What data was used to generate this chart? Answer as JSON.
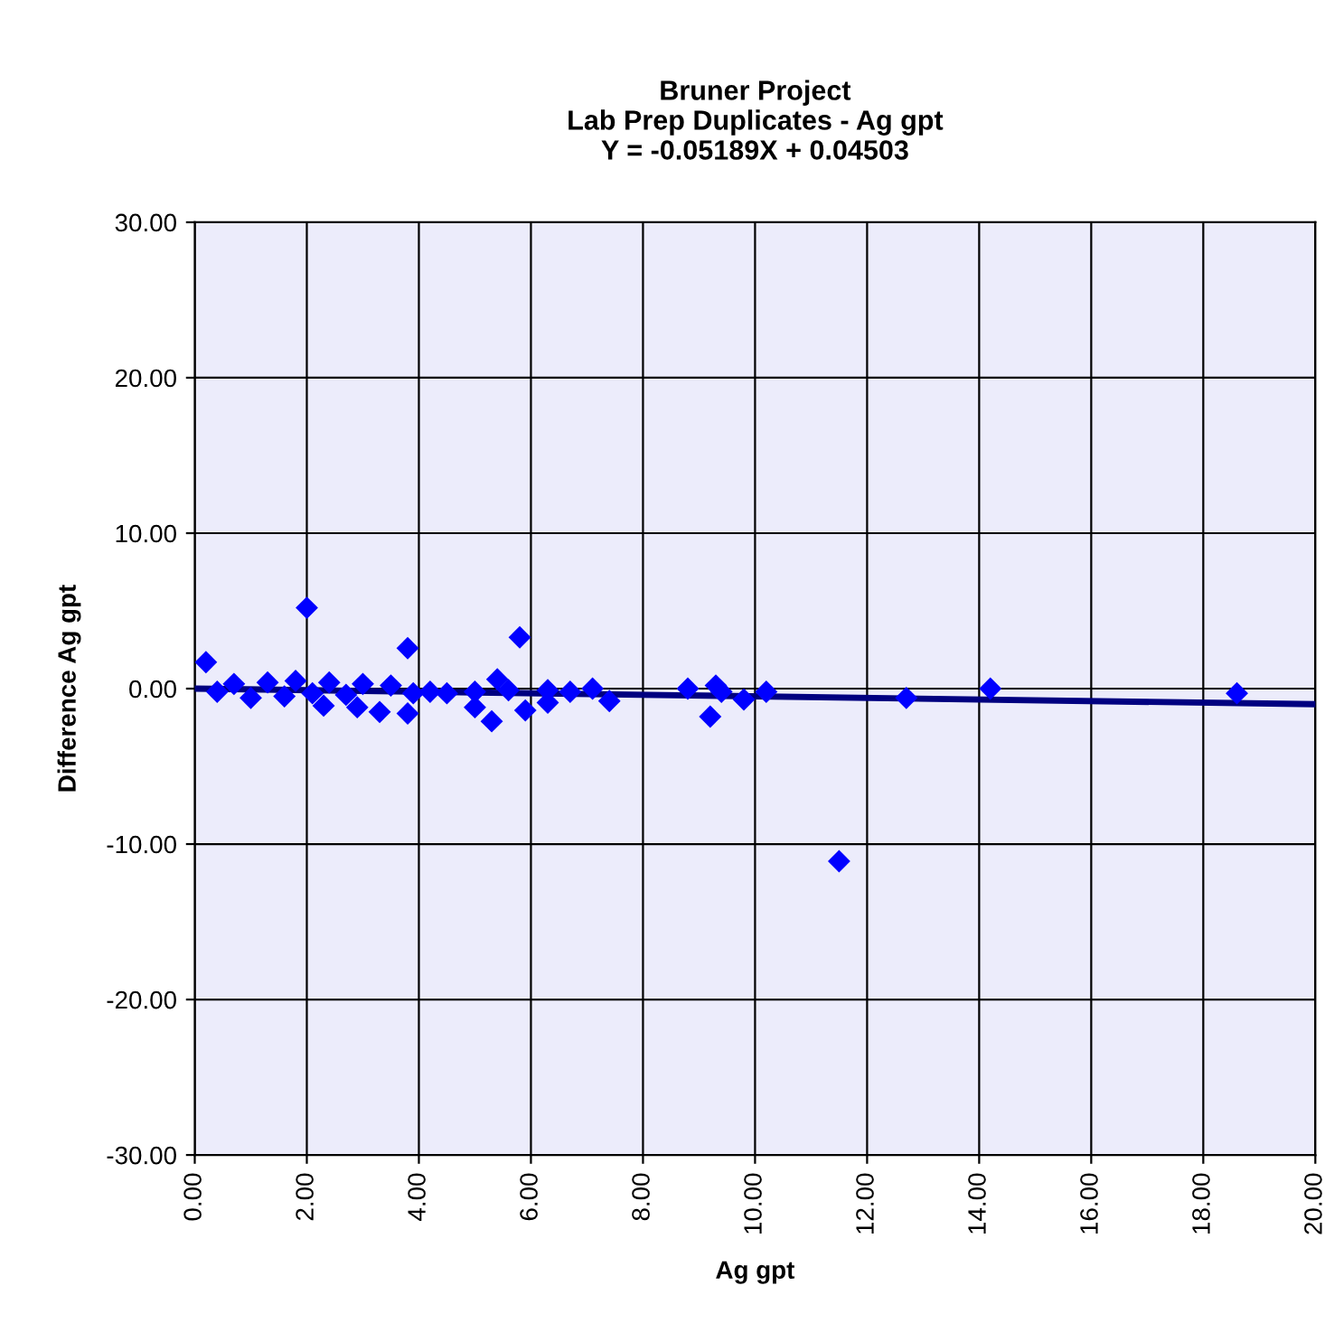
{
  "chart_data": {
    "type": "scatter",
    "title": "Bruner Project\nLab Prep Duplicates - Ag gpt\nY = -0.05189X + 0.04503",
    "xlabel": "Ag gpt",
    "ylabel": "Difference Ag gpt",
    "xlim": [
      0,
      20
    ],
    "ylim": [
      -30,
      30
    ],
    "xticks": [
      {
        "value": 0,
        "label": "0.00"
      },
      {
        "value": 2,
        "label": "2.00"
      },
      {
        "value": 4,
        "label": "4.00"
      },
      {
        "value": 6,
        "label": "6.00"
      },
      {
        "value": 8,
        "label": "8.00"
      },
      {
        "value": 10,
        "label": "10.00"
      },
      {
        "value": 12,
        "label": "12.00"
      },
      {
        "value": 14,
        "label": "14.00"
      },
      {
        "value": 16,
        "label": "16.00"
      },
      {
        "value": 18,
        "label": "18.00"
      },
      {
        "value": 20,
        "label": "20.00"
      }
    ],
    "yticks": [
      {
        "value": -30,
        "label": "-30.00"
      },
      {
        "value": -20,
        "label": "-20.00"
      },
      {
        "value": -10,
        "label": "-10.00"
      },
      {
        "value": 0,
        "label": "0.00"
      },
      {
        "value": 10,
        "label": "10.00"
      },
      {
        "value": 20,
        "label": "20.00"
      },
      {
        "value": 30,
        "label": "30.00"
      }
    ],
    "grid": true,
    "series": [
      {
        "color": "#0000ff",
        "marker": "diamond",
        "x": [
          0.2,
          0.4,
          0.7,
          1.0,
          1.3,
          1.6,
          1.8,
          2.0,
          2.1,
          2.3,
          2.4,
          2.7,
          2.9,
          3.0,
          3.3,
          3.5,
          3.8,
          3.8,
          3.9,
          4.2,
          4.5,
          5.0,
          5.0,
          5.3,
          5.4,
          5.6,
          5.8,
          5.9,
          6.3,
          6.3,
          6.7,
          7.1,
          7.4,
          8.8,
          9.2,
          9.3,
          9.4,
          9.8,
          10.2,
          11.5,
          12.7,
          14.2,
          18.6
        ],
        "values": [
          1.7,
          -0.2,
          0.3,
          -0.6,
          0.4,
          -0.5,
          0.5,
          5.2,
          -0.3,
          -1.1,
          0.4,
          -0.4,
          -1.2,
          0.3,
          -1.5,
          0.2,
          2.6,
          -1.6,
          -0.3,
          -0.2,
          -0.3,
          -0.2,
          -1.2,
          -2.1,
          0.6,
          -0.1,
          3.3,
          -1.4,
          -0.1,
          -0.9,
          -0.2,
          0.0,
          -0.8,
          0.0,
          -1.8,
          0.2,
          -0.2,
          -0.7,
          -0.2,
          -11.1,
          -0.6,
          0.0,
          -0.3
        ]
      },
      {
        "type": "line",
        "color": "#000080",
        "marker": "none",
        "x": [
          0,
          20
        ],
        "values": [
          0.0,
          -1.0
        ]
      }
    ]
  }
}
